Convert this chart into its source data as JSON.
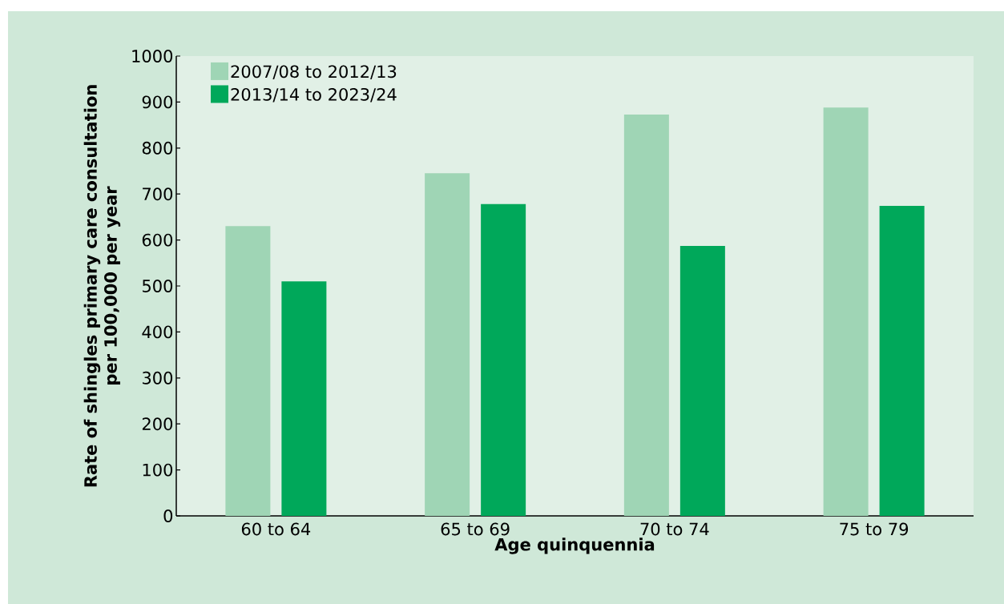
{
  "chart_data": {
    "type": "bar",
    "xlabel": "Age quinquennia",
    "ylabel": "Rate of shingles primary care consultation per 100,000 per year",
    "categories": [
      "60 to 64",
      "65 to 69",
      "70 to 74",
      "75 to 79"
    ],
    "series": [
      {
        "name": "2007/08 to 2012/13",
        "color": "#9fd5b5",
        "values": [
          630,
          745,
          873,
          888
        ]
      },
      {
        "name": "2013/14 to 2023/24",
        "color": "#00a85a",
        "values": [
          510,
          678,
          587,
          674
        ]
      }
    ],
    "ylim": [
      0,
      1000
    ],
    "yticks": [
      0,
      100,
      200,
      300,
      400,
      500,
      600,
      700,
      800,
      900,
      1000
    ],
    "grid": false,
    "legend": "top left"
  }
}
